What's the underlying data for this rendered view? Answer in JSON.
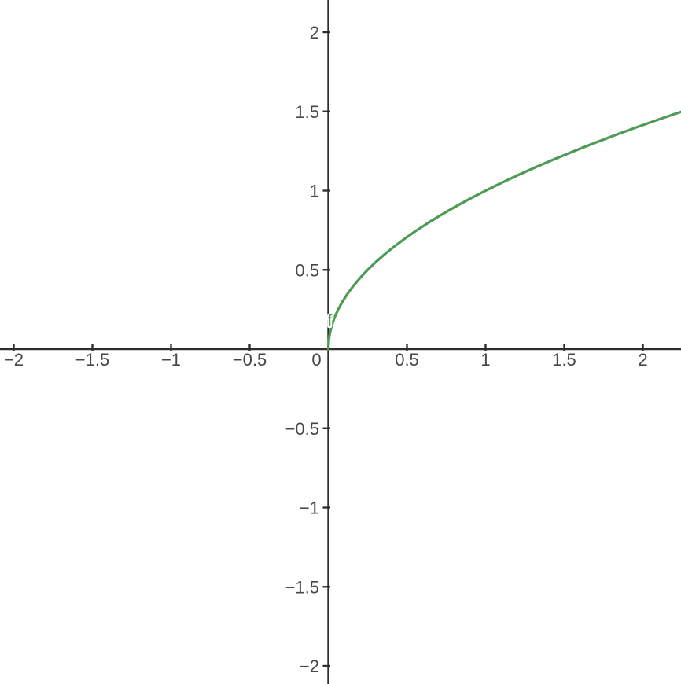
{
  "chart_data": {
    "type": "line",
    "title": "",
    "xlabel": "",
    "ylabel": "",
    "grid": false,
    "legend": "none",
    "function_label": "f",
    "expression": "f(x) = sqrt(x)",
    "xlim": [
      -2.0875,
      2.2425
    ],
    "ylim": [
      -2.1141,
      2.2035
    ],
    "tick_step": 0.5,
    "x_ticks": [
      -2,
      -1.5,
      -1,
      -0.5,
      0.5,
      1,
      1.5,
      2
    ],
    "y_ticks": [
      -2,
      -1.5,
      -1,
      -0.5,
      0.5,
      1,
      1.5,
      2
    ],
    "x_labels": [
      {
        "v": -2,
        "t": "−2"
      },
      {
        "v": -1.5,
        "t": "−1.5"
      },
      {
        "v": -1,
        "t": "−1"
      },
      {
        "v": -0.5,
        "t": "−0.5"
      },
      {
        "v": 0,
        "t": "0"
      },
      {
        "v": 0.5,
        "t": "0.5"
      },
      {
        "v": 1,
        "t": "1"
      },
      {
        "v": 1.5,
        "t": "1.5"
      },
      {
        "v": 2,
        "t": "2"
      }
    ],
    "y_labels": [
      {
        "v": 2,
        "t": "2"
      },
      {
        "v": 1.5,
        "t": "1.5"
      },
      {
        "v": 1,
        "t": "1"
      },
      {
        "v": 0.5,
        "t": "0.5"
      },
      {
        "v": -0.5,
        "t": "−0.5"
      },
      {
        "v": -1,
        "t": "−1"
      },
      {
        "v": -1.5,
        "t": "−1.5"
      },
      {
        "v": -2,
        "t": "−2"
      }
    ],
    "label_pos": {
      "x": -0.005,
      "y": 0.1435
    },
    "series": [
      {
        "name": "f",
        "points": [
          [
            0,
            0
          ],
          [
            0.003,
            0.0548
          ],
          [
            0.008,
            0.0894
          ],
          [
            0.015,
            0.1225
          ],
          [
            0.025,
            0.1581
          ],
          [
            0.04,
            0.2
          ],
          [
            0.06,
            0.2449
          ],
          [
            0.09,
            0.3
          ],
          [
            0.12,
            0.3464
          ],
          [
            0.16,
            0.4
          ],
          [
            0.2,
            0.4472
          ],
          [
            0.25,
            0.5
          ],
          [
            0.3,
            0.5477
          ],
          [
            0.36,
            0.6
          ],
          [
            0.42,
            0.6481
          ],
          [
            0.49,
            0.7
          ],
          [
            0.56,
            0.7483
          ],
          [
            0.64,
            0.8
          ],
          [
            0.72,
            0.8485
          ],
          [
            0.81,
            0.9
          ],
          [
            0.9,
            0.9487
          ],
          [
            1,
            1
          ],
          [
            1.1,
            1.0488
          ],
          [
            1.21,
            1.1
          ],
          [
            1.32,
            1.1489
          ],
          [
            1.44,
            1.2
          ],
          [
            1.56,
            1.249
          ],
          [
            1.69,
            1.3
          ],
          [
            1.82,
            1.3491
          ],
          [
            1.96,
            1.4
          ],
          [
            2.1,
            1.4491
          ],
          [
            2.2425,
            1.4975
          ]
        ]
      }
    ],
    "colors": {
      "curve": "#4e9b57",
      "axis": "#2e2e2e",
      "tick_label": "#474747",
      "background": "#ffffff",
      "label_halo": "#ffffff"
    }
  }
}
